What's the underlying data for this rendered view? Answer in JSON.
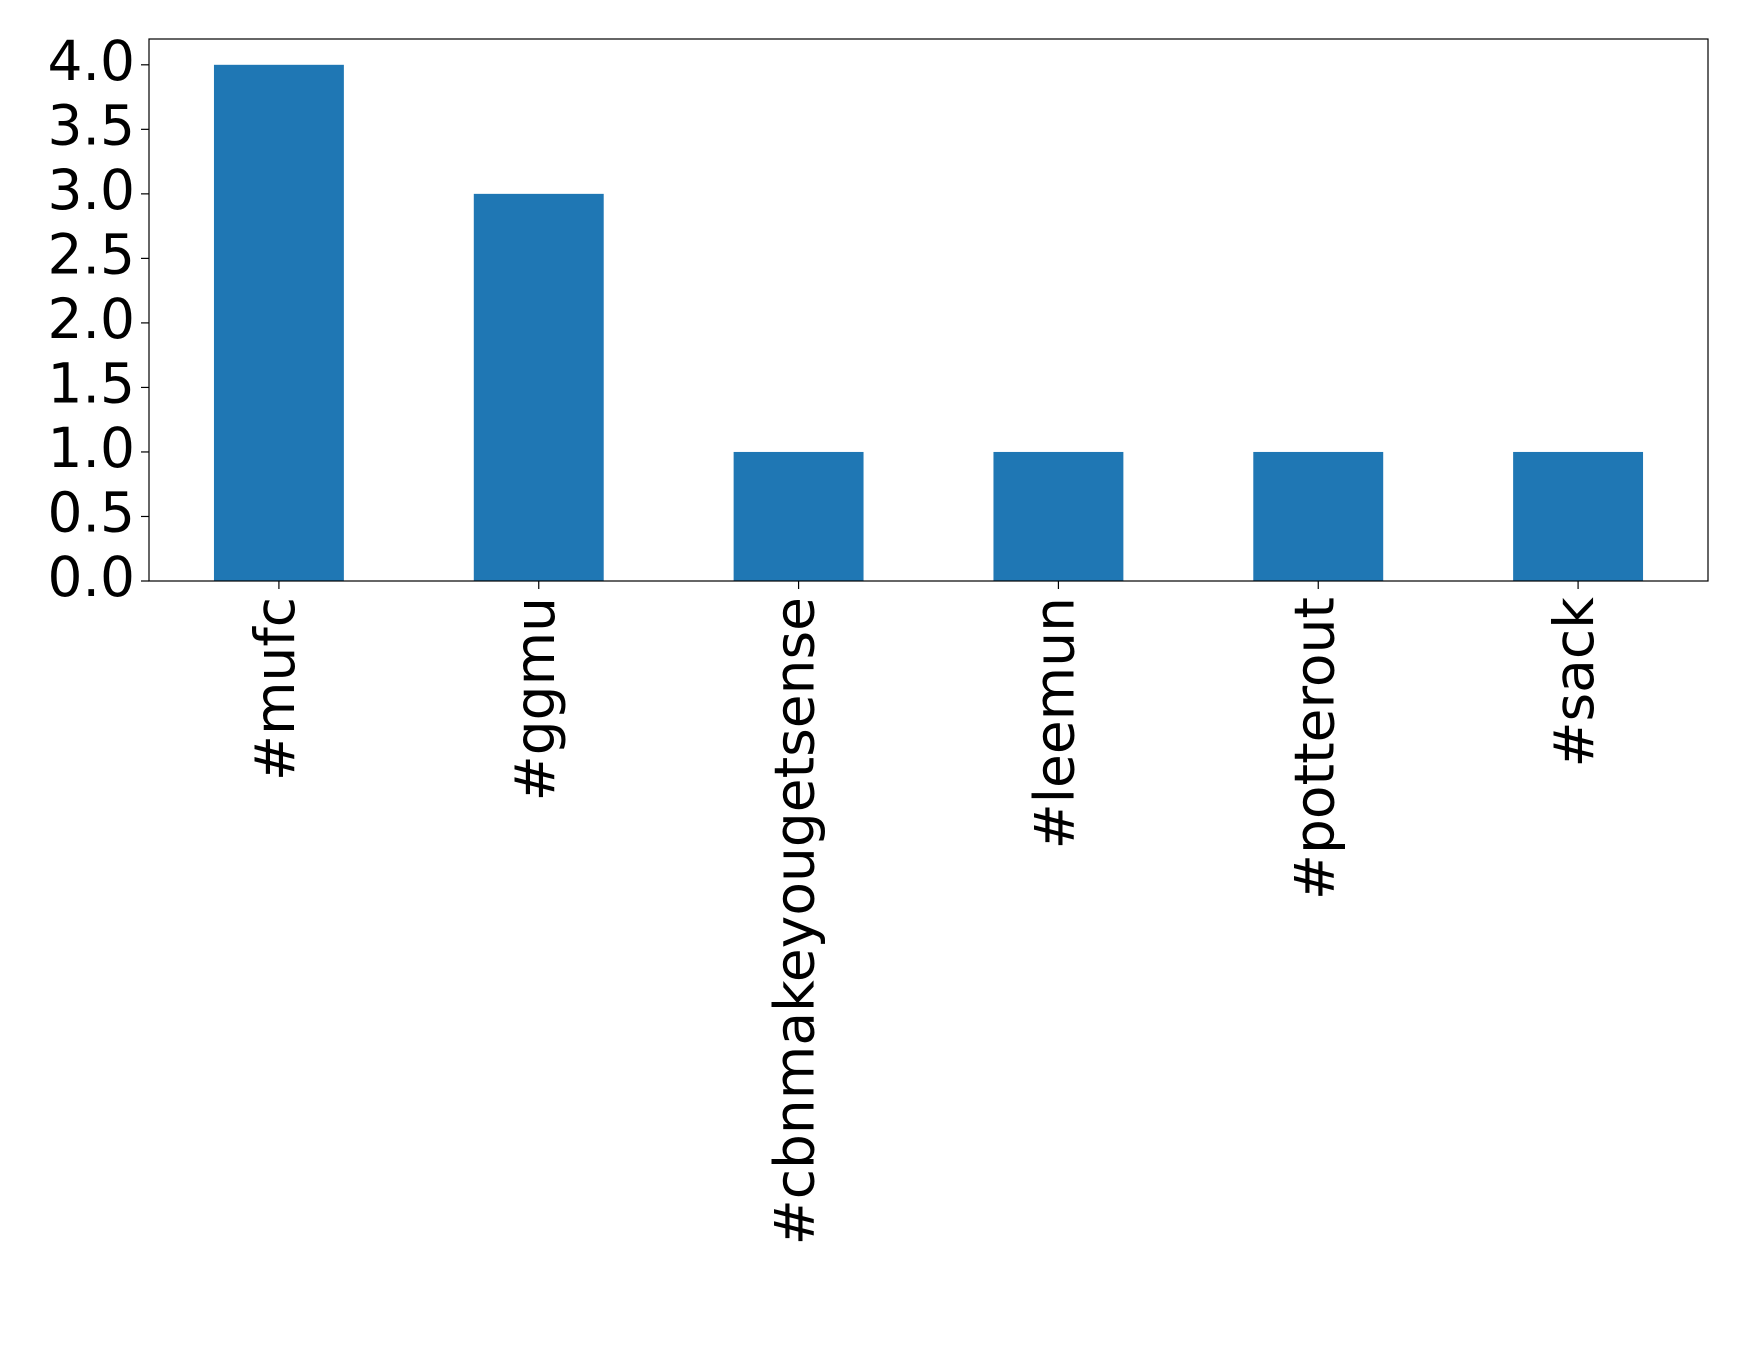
{
  "chart_data": {
    "type": "bar",
    "categories": [
      "#mufc",
      "#ggmu",
      "#cbnmakeyougetsense",
      "#leemun",
      "#potterout",
      "#sack"
    ],
    "values": [
      4,
      3,
      1,
      1,
      1,
      1
    ],
    "color": "#1f77b4",
    "ylim": [
      0,
      4.2
    ],
    "yticks": [
      {
        "value": 0,
        "label": "0.0"
      },
      0.5,
      {
        "value": 1,
        "label": "1.0"
      },
      1.5,
      {
        "value": 2,
        "label": "2.0"
      },
      2.5,
      {
        "value": 3,
        "label": "3.0"
      },
      3.5,
      {
        "value": 4,
        "label": "4.0"
      }
    ],
    "grid": false
  }
}
